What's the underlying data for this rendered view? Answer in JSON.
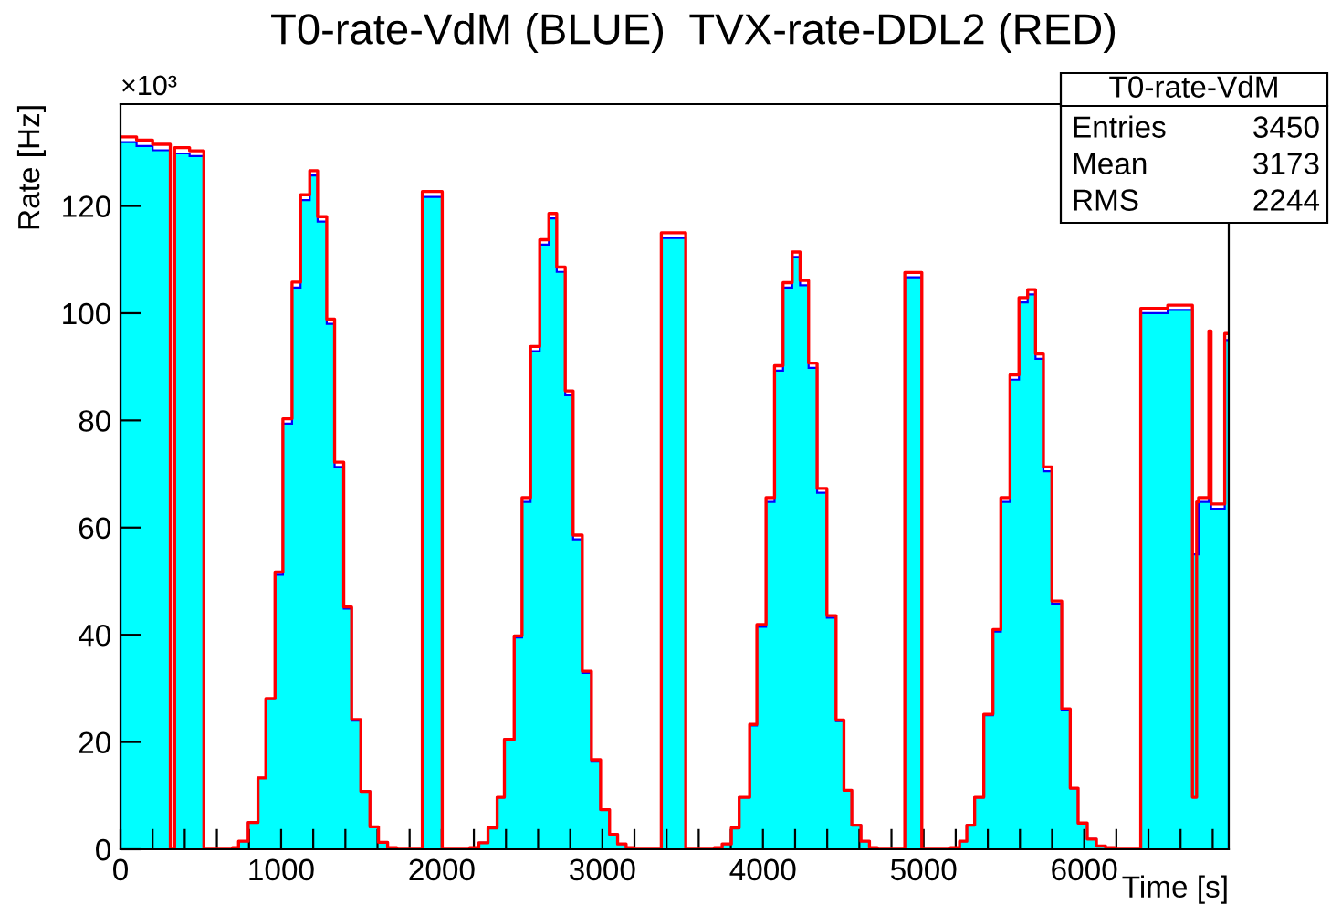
{
  "chart_data": {
    "type": "histogram",
    "title": "T0-rate-VdM (BLUE)  TVX-rate-DDL2 (RED)",
    "xlabel": "Time [s]",
    "ylabel": "Rate [Hz]",
    "annotations": [
      "×10³",
      "T0-rate-VdM",
      "Entries",
      "3450",
      "Mean",
      "3173",
      "RMS",
      "2244"
    ],
    "bins": [
      0,
      100,
      200,
      310,
      337,
      430,
      519,
      697,
      735,
      795,
      856,
      905,
      962,
      1011,
      1068,
      1121,
      1178,
      1227,
      1284,
      1333,
      1390,
      1439,
      1496,
      1553,
      1606,
      1663,
      1720,
      1879,
      2003,
      2174,
      2231,
      2288,
      2345,
      2390,
      2451,
      2500,
      2553,
      2610,
      2667,
      2716,
      2769,
      2818,
      2875,
      2932,
      2989,
      3045,
      3095,
      3148,
      3197,
      3367,
      3519,
      3697,
      3746,
      3803,
      3852,
      3917,
      3962,
      4019,
      4072,
      4125,
      4182,
      4231,
      4284,
      4337,
      4398,
      4455,
      4504,
      4553,
      4610,
      4663,
      4712,
      4883,
      4989,
      5167,
      5224,
      5269,
      5318,
      5375,
      5432,
      5481,
      5538,
      5594,
      5648,
      5697,
      5746,
      5799,
      5860,
      5913,
      5962,
      6019,
      6076,
      6133,
      6190,
      6352,
      6520,
      6674,
      6700,
      6712,
      6776,
      6790,
      6875,
      6900
    ],
    "series": [
      {
        "color": "#00ffff",
        "values": [
          131.9,
          131.2,
          130.4,
          0,
          129.8,
          129.3,
          0,
          0.3,
          1.5,
          5.0,
          13.3,
          28.1,
          51.2,
          79.4,
          104.8,
          121.1,
          125.7,
          117.1,
          98.0,
          71.3,
          44.9,
          24.0,
          10.8,
          4.2,
          1.3,
          0.3,
          0,
          121.7,
          0,
          0.3,
          1.2,
          4.0,
          9.7,
          20.5,
          39.5,
          64.8,
          92.9,
          112.8,
          117.7,
          107.7,
          84.7,
          57.8,
          32.9,
          16.5,
          7.4,
          2.8,
          1.0,
          0.3,
          0,
          114.0,
          0,
          0.3,
          1.0,
          4.0,
          9.7,
          23.1,
          41.5,
          64.8,
          89.3,
          104.8,
          110.5,
          105.2,
          89.8,
          66.5,
          43.2,
          23.9,
          11.0,
          4.5,
          1.5,
          0.3,
          0,
          106.7,
          0,
          0.3,
          1.5,
          4.5,
          9.7,
          25.0,
          40.6,
          64.8,
          87.6,
          102.0,
          103.5,
          91.5,
          70.5,
          45.8,
          25.9,
          11.4,
          4.9,
          1.9,
          0.6,
          0.3,
          0,
          100.0,
          100.6,
          55,
          55,
          64.8,
          90,
          63.5,
          95
        ]
      },
      {
        "type": "step",
        "color": "#ff0000",
        "x": [
          0,
          100,
          200,
          310,
          337,
          430,
          519,
          697,
          735,
          795,
          856,
          905,
          962,
          1011,
          1068,
          1121,
          1178,
          1227,
          1284,
          1333,
          1390,
          1439,
          1496,
          1553,
          1606,
          1663,
          1720,
          1879,
          2003,
          2174,
          2231,
          2288,
          2345,
          2390,
          2451,
          2500,
          2553,
          2610,
          2667,
          2716,
          2769,
          2818,
          2875,
          2932,
          2989,
          3045,
          3095,
          3148,
          3197,
          3367,
          3519,
          3697,
          3746,
          3803,
          3852,
          3917,
          3962,
          4019,
          4072,
          4125,
          4182,
          4231,
          4284,
          4337,
          4398,
          4455,
          4504,
          4553,
          4610,
          4663,
          4712,
          4883,
          4989,
          5167,
          5224,
          5269,
          5318,
          5375,
          5432,
          5481,
          5538,
          5594,
          5648,
          5697,
          5746,
          5799,
          5860,
          5913,
          5962,
          6019,
          6076,
          6133,
          6190,
          6352,
          6520,
          6674,
          6700,
          6712,
          6776,
          6790,
          6875
        ],
        "values": [
          132.9,
          132.3,
          131.5,
          0,
          130.9,
          130.3,
          0,
          0.3,
          1.5,
          5.0,
          13.3,
          28.1,
          51.7,
          80.3,
          105.8,
          122.1,
          126.6,
          118.0,
          98.9,
          72.2,
          45.2,
          24.2,
          10.8,
          4.2,
          1.3,
          0.3,
          0,
          122.7,
          0,
          0.3,
          1.2,
          4.0,
          9.7,
          20.5,
          39.8,
          65.6,
          93.8,
          113.7,
          118.6,
          108.6,
          85.5,
          58.6,
          33.2,
          16.7,
          7.4,
          2.8,
          1.0,
          0.3,
          0,
          115.0,
          0,
          0.3,
          1.0,
          4.0,
          9.7,
          23.3,
          41.9,
          65.6,
          90.2,
          105.7,
          111.4,
          106.1,
          90.7,
          67.3,
          43.6,
          24.1,
          11.0,
          4.5,
          1.5,
          0.3,
          0,
          107.6,
          0,
          0.3,
          1.5,
          4.5,
          9.7,
          25.2,
          41.0,
          65.6,
          88.5,
          102.9,
          104.4,
          92.4,
          71.3,
          46.3,
          26.2,
          11.4,
          4.9,
          1.9,
          0.6,
          0.3,
          0,
          100.9,
          101.5,
          9.7,
          64.8,
          65.6,
          96.7,
          64.4,
          96.2
        ]
      }
    ],
    "xlim": [
      0,
      6900
    ],
    "ylim": [
      0,
      139
    ],
    "xticks": [
      0,
      {
        "value": 200,
        "label": null
      },
      {
        "value": 400,
        "label": null
      },
      {
        "value": 600,
        "label": null
      },
      {
        "value": 800,
        "label": null
      },
      1000,
      {
        "value": 1200,
        "label": null
      },
      {
        "value": 1400,
        "label": null
      },
      {
        "value": 1600,
        "label": null
      },
      {
        "value": 1800,
        "label": null
      },
      2000,
      {
        "value": 2200,
        "label": null
      },
      {
        "value": 2400,
        "label": null
      },
      {
        "value": 2600,
        "label": null
      },
      {
        "value": 2800,
        "label": null
      },
      3000,
      {
        "value": 3200,
        "label": null
      },
      {
        "value": 3400,
        "label": null
      },
      {
        "value": 3600,
        "label": null
      },
      {
        "value": 3800,
        "label": null
      },
      4000,
      {
        "value": 4200,
        "label": null
      },
      {
        "value": 4400,
        "label": null
      },
      {
        "value": 4600,
        "label": null
      },
      {
        "value": 4800,
        "label": null
      },
      5000,
      {
        "value": 5200,
        "label": null
      },
      {
        "value": 5400,
        "label": null
      },
      {
        "value": 5600,
        "label": null
      },
      {
        "value": 5800,
        "label": null
      },
      6000,
      {
        "value": 6200,
        "label": null
      },
      {
        "value": 6400,
        "label": null
      },
      {
        "value": 6600,
        "label": null
      },
      {
        "value": 6800,
        "label": null
      }
    ],
    "yticks": [
      0,
      20,
      40,
      60,
      80,
      100,
      120
    ],
    "grid": false
  }
}
